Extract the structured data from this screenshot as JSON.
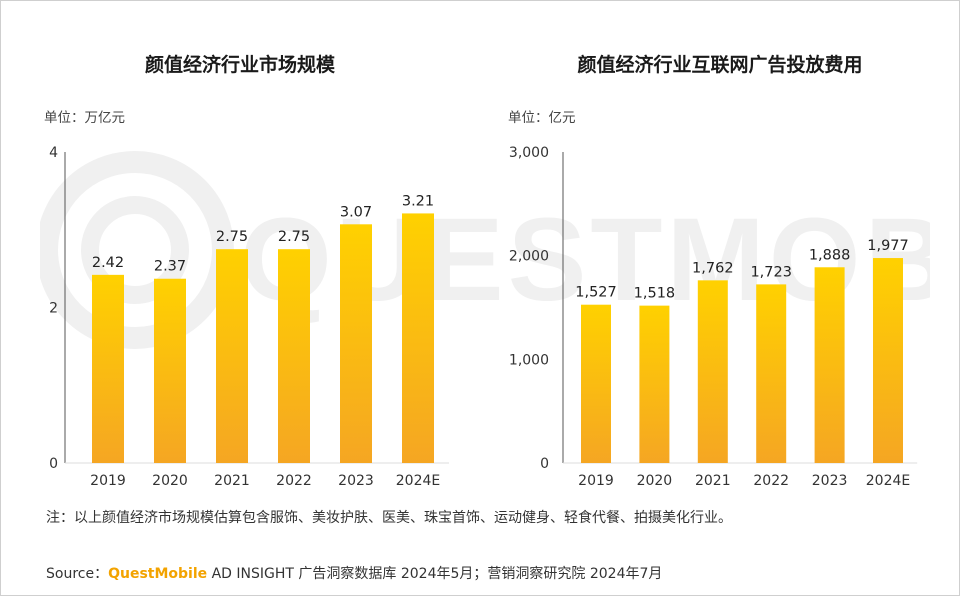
{
  "chart_data": [
    {
      "type": "bar",
      "title": "颜值经济行业市场规模",
      "unit_label": "单位：万亿元",
      "categories": [
        "2019",
        "2020",
        "2021",
        "2022",
        "2023",
        "2024E"
      ],
      "values": [
        2.42,
        2.37,
        2.75,
        2.75,
        3.07,
        3.21
      ],
      "value_labels": [
        "2.42",
        "2.37",
        "2.75",
        "2.75",
        "3.07",
        "3.21"
      ],
      "ylim": [
        0,
        4
      ],
      "yticks": [
        0,
        2,
        4
      ],
      "ytick_labels": [
        "0",
        "2",
        "4"
      ],
      "grid": false,
      "bar_color_top": "#ffd100",
      "bar_color_bottom": "#f5a623"
    },
    {
      "type": "bar",
      "title": "颜值经济行业互联网广告投放费用",
      "unit_label": "单位：亿元",
      "categories": [
        "2019",
        "2020",
        "2021",
        "2022",
        "2023",
        "2024E"
      ],
      "values": [
        1527,
        1518,
        1762,
        1723,
        1888,
        1977
      ],
      "value_labels": [
        "1,527",
        "1,518",
        "1,762",
        "1,723",
        "1,888",
        "1,977"
      ],
      "ylim": [
        0,
        3000
      ],
      "yticks": [
        0,
        1000,
        2000,
        3000
      ],
      "ytick_labels": [
        "0",
        "1,000",
        "2,000",
        "3,000"
      ],
      "grid": false,
      "bar_color_top": "#ffd100",
      "bar_color_bottom": "#f5a623"
    }
  ],
  "note": "注：以上颜值经济市场规模估算包含服饰、美妆护肤、医美、珠宝首饰、运动健身、轻食代餐、拍摄美化行业。",
  "source": {
    "prefix": "Source：",
    "brand": "QuestMobile",
    "text": " AD INSIGHT 广告洞察数据库 2024年5月；营销洞察研究院 2024年7月"
  },
  "watermark": {
    "text": "QUESTMOBILE",
    "color": "#f0f0f0"
  },
  "colors": {
    "axis": "#555555",
    "border": "#cfcfcf"
  }
}
